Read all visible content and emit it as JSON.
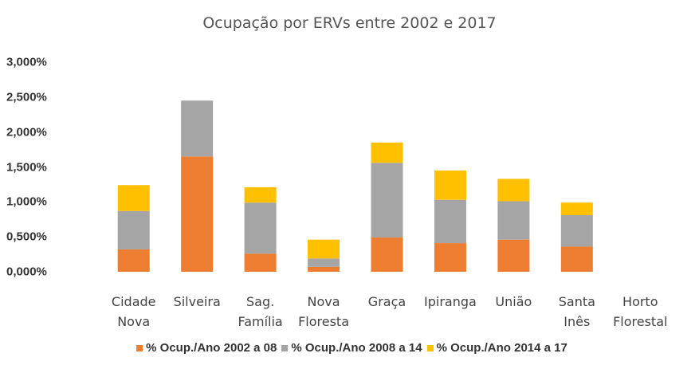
{
  "chart_data": {
    "type": "stacked_bar",
    "title": "Ocupação por ERVs entre 2002 e 2017",
    "categories": [
      "Cidade Nova",
      "Silveira",
      "Sag. Família",
      "Nova Floresta",
      "Graça",
      "Ipiranga",
      "União",
      "Santa Inês",
      "Horto Florestal"
    ],
    "series": [
      {
        "name": "% Ocup./Ano 2002 a 08",
        "color": "#ed7d31",
        "values": [
          0.32,
          1.65,
          0.26,
          0.07,
          0.49,
          0.41,
          0.46,
          0.36,
          0
        ]
      },
      {
        "name": "% Ocup./Ano 2008 a 14",
        "color": "#a5a5a5",
        "values": [
          0.55,
          0.8,
          0.73,
          0.12,
          1.07,
          0.62,
          0.55,
          0.45,
          0
        ]
      },
      {
        "name": "% Ocup./Ano 2014 a 17",
        "color": "#ffc000",
        "values": [
          0.37,
          0,
          0.22,
          0.27,
          0.29,
          0.42,
          0.32,
          0.18,
          0
        ]
      }
    ],
    "ylim": [
      0,
      3
    ],
    "yticks": [
      {
        "value": 0,
        "label": "0,000%"
      },
      {
        "value": 0.5,
        "label": "0,500%"
      },
      {
        "value": 1,
        "label": "1,000%"
      },
      {
        "value": 1.5,
        "label": "1,500%"
      },
      {
        "value": 2,
        "label": "2,000%"
      },
      {
        "value": 2.5,
        "label": "2,500%"
      },
      {
        "value": 3,
        "label": "3,000%"
      }
    ],
    "grid": false
  }
}
